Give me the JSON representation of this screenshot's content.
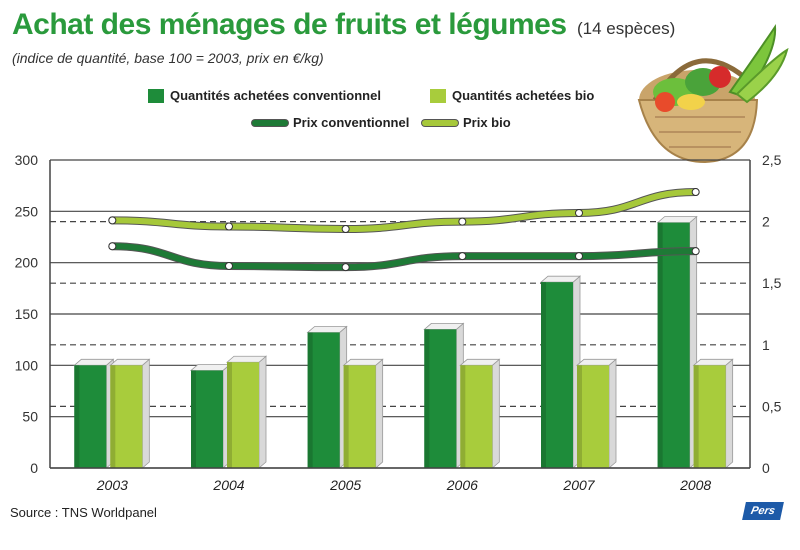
{
  "title": "Achat des ménages de fruits et légumes",
  "title_extra": "(14 espèces)",
  "subtitle": "(indice de quantité, base 100 = 2003, prix en €/kg)",
  "source": "Source : TNS Worldpanel",
  "logo_text": "Pers",
  "colors": {
    "conv_bar": "#1e8c3a",
    "bio_bar": "#a8cc3c",
    "conv_line": "#1e7a36",
    "bio_line": "#a6c83a",
    "title": "#2a9a3c"
  },
  "chart_data": {
    "type": "bar",
    "title": "Achat des ménages de fruits et légumes",
    "categories": [
      "2003",
      "2004",
      "2005",
      "2006",
      "2007",
      "2008"
    ],
    "series": [
      {
        "name": "Quantités achetées conventionnel",
        "kind": "bar",
        "axis": "left",
        "values": [
          100,
          95,
          132,
          135,
          181,
          239
        ]
      },
      {
        "name": "Quantités achetées bio",
        "kind": "bar",
        "axis": "left",
        "values": [
          100,
          103,
          100,
          100,
          100,
          100
        ]
      },
      {
        "name": "Prix conventionnel",
        "kind": "line",
        "axis": "right",
        "values": [
          1.8,
          1.64,
          1.63,
          1.72,
          1.72,
          1.76
        ]
      },
      {
        "name": "Prix bio",
        "kind": "line",
        "axis": "right",
        "values": [
          2.01,
          1.96,
          1.94,
          2.0,
          2.07,
          2.24
        ]
      }
    ],
    "y_left": {
      "min": 0,
      "max": 300,
      "ticks": [
        "0",
        "50",
        "100",
        "150",
        "200",
        "250",
        "300"
      ]
    },
    "y_right": {
      "min": 0,
      "max": 2.5,
      "ticks": [
        "0",
        "0,5",
        "1",
        "1,5",
        "2",
        "2,5"
      ]
    },
    "grid": true,
    "legend": "top"
  }
}
